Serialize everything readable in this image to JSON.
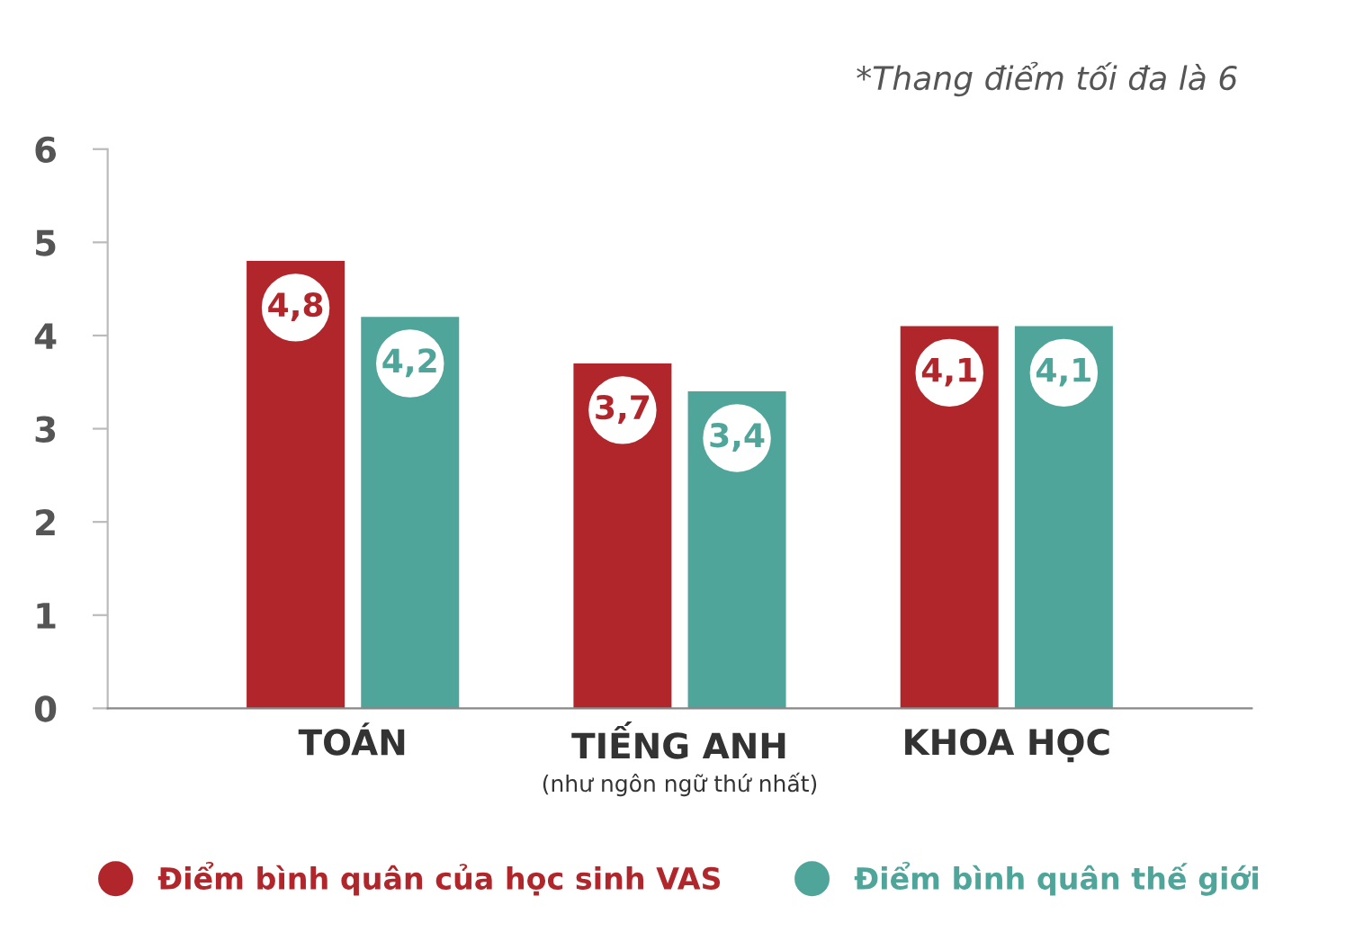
{
  "chart_data": {
    "type": "bar",
    "categories": [
      "TOÁN",
      "TIẾNG ANH",
      "KHOA HỌC"
    ],
    "series": [
      {
        "name": "Điểm bình quân của học sinh VAS",
        "color": "#b0262a",
        "values": [
          4.8,
          3.7,
          4.1
        ],
        "value_labels": [
          "4,8",
          "3,7",
          "4,1"
        ]
      },
      {
        "name": "Điểm bình quân thế giới",
        "color": "#4fa59a",
        "values": [
          4.2,
          3.4,
          4.1
        ],
        "value_labels": [
          "4,2",
          "3,4",
          "4,1"
        ]
      }
    ],
    "ylim": [
      0,
      6
    ],
    "yticks": [
      0,
      1,
      2,
      3,
      4,
      5,
      6
    ],
    "grid": false,
    "legend": "bottom",
    "annotations": [
      "*Thang điểm tối đa là 6",
      "(như ngôn ngữ thứ nhất)"
    ]
  }
}
